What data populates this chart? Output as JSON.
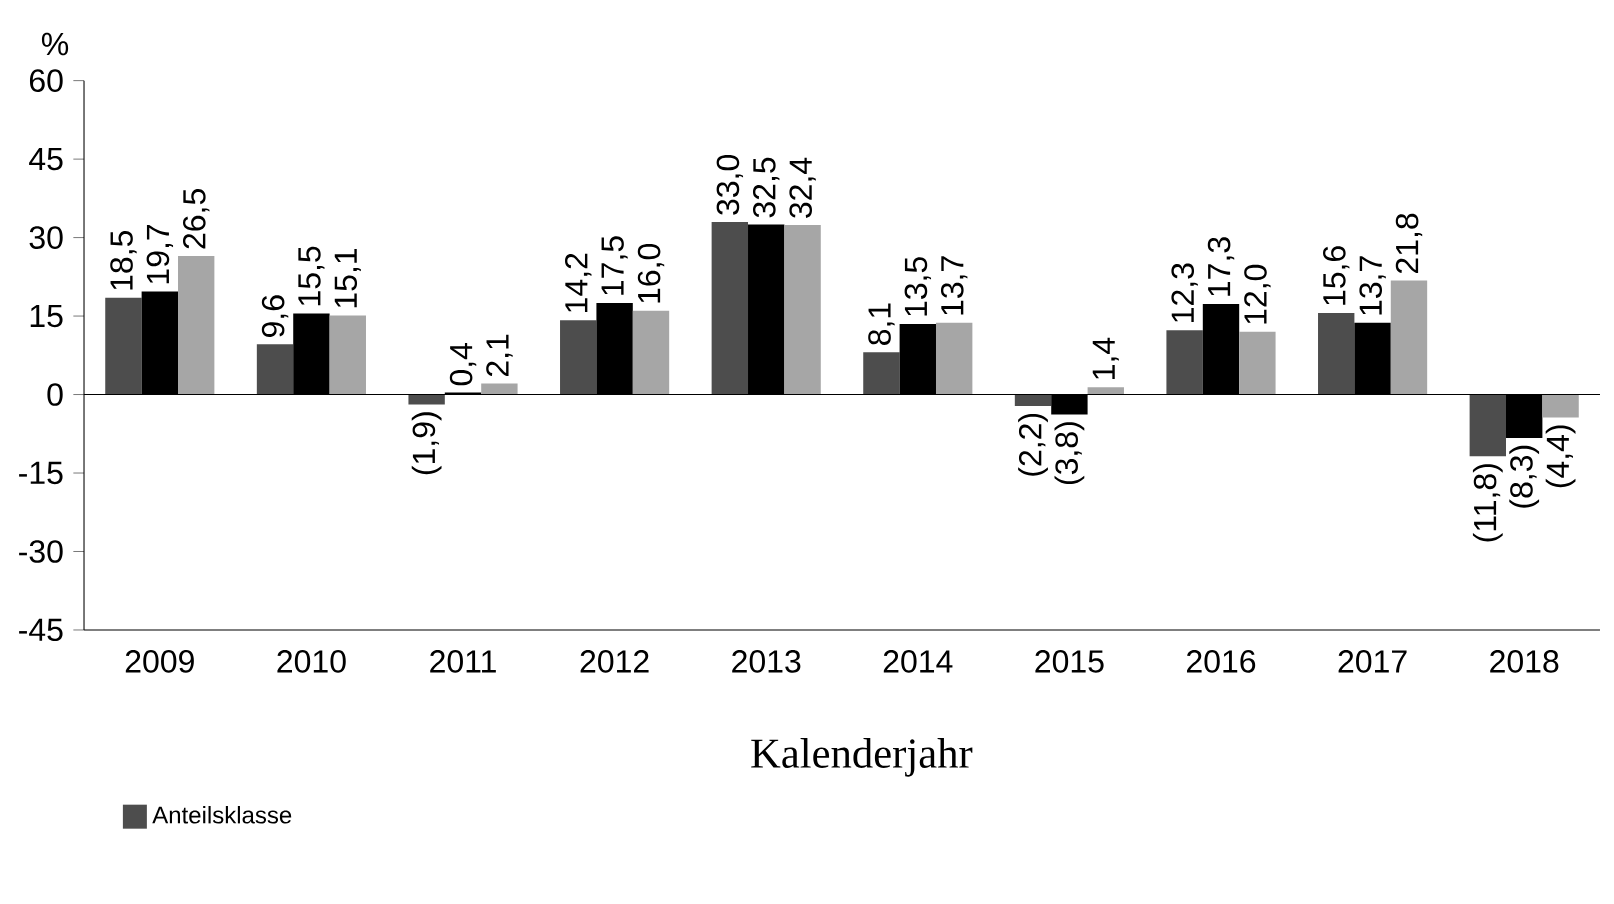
{
  "chart_data": {
    "type": "bar",
    "ylabel": "%",
    "xlabel": "Kalenderjahr",
    "categories": [
      "2009",
      "2010",
      "2011",
      "2012",
      "2013",
      "2014",
      "2015",
      "2016",
      "2017",
      "2018"
    ],
    "series": [
      {
        "name": "Anteilsklasse",
        "color": "#4d4d4d",
        "values": [
          18.5,
          9.6,
          -1.9,
          14.2,
          33.0,
          8.1,
          -2.2,
          12.3,
          15.6,
          -11.8
        ],
        "value_labels": [
          "18,5",
          "9,6",
          "(1,9)",
          "14,2",
          "33,0",
          "8,1",
          "(2,2)",
          "12,3",
          "15,6",
          "(11,8)"
        ]
      },
      {
        "color": "#000000",
        "values": [
          19.7,
          15.5,
          0.4,
          17.5,
          32.5,
          13.5,
          -3.8,
          17.3,
          13.7,
          -8.3
        ],
        "value_labels": [
          "19,7",
          "15,5",
          "0,4",
          "17,5",
          "32,5",
          "13,5",
          "(3,8)",
          "17,3",
          "13,7",
          "(8,3)"
        ]
      },
      {
        "color": "#a6a6a6",
        "values": [
          26.5,
          15.1,
          2.1,
          16.0,
          32.4,
          13.7,
          1.4,
          12.0,
          21.8,
          -4.4
        ],
        "value_labels": [
          "26,5",
          "15,1",
          "2,1",
          "16,0",
          "32,4",
          "13,7",
          "1,4",
          "12,0",
          "21,8",
          "(4,4)"
        ]
      }
    ],
    "ylim": [
      -45,
      60
    ],
    "yticks": [
      -45,
      -30,
      -15,
      0,
      15,
      30,
      45,
      60
    ],
    "ref_lines": [
      {
        "axis": "y",
        "value": 0,
        "color": "#000000"
      }
    ],
    "grid": false,
    "legend": "bottom left"
  }
}
